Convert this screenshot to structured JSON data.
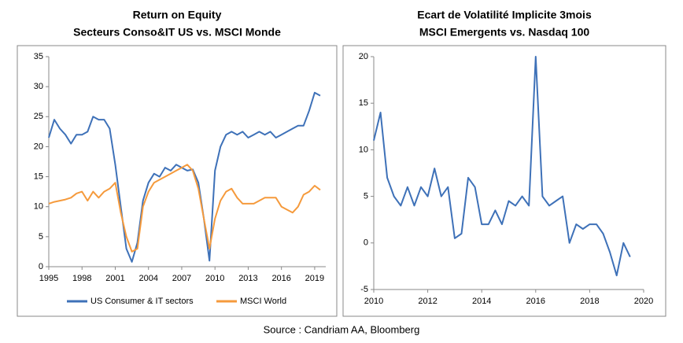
{
  "chart_data": [
    {
      "type": "line",
      "title": [
        "Return on Equity",
        "Secteurs Conso&IT US vs. MSCI Monde"
      ],
      "x": [
        1995,
        1995.5,
        1996,
        1996.5,
        1997,
        1997.5,
        1998,
        1998.5,
        1999,
        1999.5,
        2000,
        2000.5,
        2001,
        2001.5,
        2002,
        2002.5,
        2003,
        2003.5,
        2004,
        2004.5,
        2005,
        2005.5,
        2006,
        2006.5,
        2007,
        2007.5,
        2008,
        2008.5,
        2009,
        2009.5,
        2010,
        2010.5,
        2011,
        2011.5,
        2012,
        2012.5,
        2013,
        2013.5,
        2014,
        2014.5,
        2015,
        2015.5,
        2016,
        2016.5,
        2017,
        2017.5,
        2018,
        2018.5,
        2019,
        2019.5
      ],
      "series": [
        {
          "name": "US Consumer & IT sectors",
          "color": "#3e71b8",
          "values": [
            21.5,
            24.5,
            23,
            22,
            20.5,
            22,
            22,
            22.5,
            25,
            24.5,
            24.5,
            23,
            17,
            10,
            3,
            0.8,
            4,
            11,
            14,
            15.5,
            15,
            16.5,
            16,
            17,
            16.5,
            16,
            16.2,
            14,
            8,
            1,
            16,
            20,
            22,
            22.5,
            22,
            22.5,
            21.5,
            22,
            22.5,
            22,
            22.5,
            21.5,
            22,
            22.5,
            23,
            23.5,
            23.5,
            26,
            29,
            28.5
          ]
        },
        {
          "name": "MSCI World",
          "color": "#f59a3c",
          "values": [
            10.5,
            10.8,
            11,
            11.2,
            11.5,
            12.2,
            12.5,
            11,
            12.5,
            11.5,
            12.5,
            13,
            14,
            9,
            5,
            2.5,
            3,
            10,
            12.5,
            14,
            14.5,
            15,
            15.5,
            16,
            16.5,
            17,
            16,
            13,
            8,
            3,
            8,
            11,
            12.5,
            13,
            11.5,
            10.5,
            10.5,
            10.5,
            11,
            11.5,
            11.5,
            11.5,
            10,
            9.5,
            9,
            10,
            12,
            12.5,
            13.5,
            12.8
          ]
        }
      ],
      "xlim": [
        1995,
        2020
      ],
      "xticks": [
        1995,
        1998,
        2001,
        2004,
        2007,
        2010,
        2013,
        2016,
        2019
      ],
      "ylim": [
        0,
        35
      ],
      "yticks": [
        0,
        5,
        10,
        15,
        20,
        25,
        30,
        35
      ],
      "legend": "bottom"
    },
    {
      "type": "line",
      "title": [
        "Ecart de Volatilité Implicite 3mois",
        "MSCI Emergents vs. Nasdaq 100"
      ],
      "x": [
        2010,
        2010.25,
        2010.5,
        2010.75,
        2011,
        2011.25,
        2011.5,
        2011.75,
        2012,
        2012.25,
        2012.5,
        2012.75,
        2013,
        2013.25,
        2013.5,
        2013.75,
        2014,
        2014.25,
        2014.5,
        2014.75,
        2015,
        2015.25,
        2015.5,
        2015.75,
        2016,
        2016.25,
        2016.5,
        2016.75,
        2017,
        2017.25,
        2017.5,
        2017.75,
        2018,
        2018.25,
        2018.5,
        2018.75,
        2019,
        2019.25,
        2019.5
      ],
      "color": "#3e71b8",
      "values": [
        11,
        14,
        7,
        5,
        4,
        6,
        4,
        6,
        5,
        8,
        5,
        6,
        0.5,
        1,
        7,
        6,
        2,
        2,
        3.5,
        2,
        4.5,
        4,
        5,
        4,
        20,
        5,
        4,
        4.5,
        5,
        0,
        2,
        1.5,
        2,
        2,
        1,
        -1,
        -3.5,
        0,
        -1.5
      ],
      "xlim": [
        2010,
        2020
      ],
      "xticks": [
        2010,
        2012,
        2014,
        2016,
        2018,
        2020
      ],
      "ylim": [
        -5,
        20
      ],
      "yticks": [
        -5,
        0,
        5,
        10,
        15,
        20
      ]
    }
  ],
  "source": "Source : Candriam AA, Bloomberg"
}
